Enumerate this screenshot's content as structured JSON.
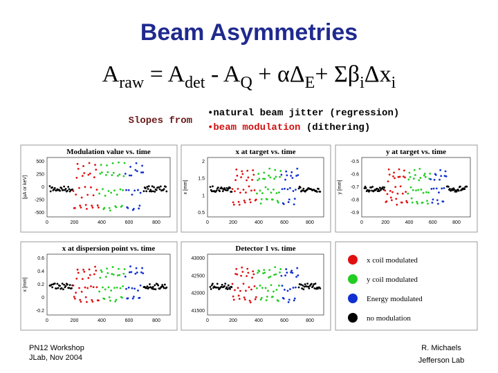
{
  "title": "Beam Asymmetries",
  "equation": [
    {
      "text": "A",
      "sub": false
    },
    {
      "text": "raw",
      "sub": true
    },
    {
      "text": " = A",
      "sub": false
    },
    {
      "text": "det",
      "sub": true
    },
    {
      "text": " - A",
      "sub": false
    },
    {
      "text": "Q",
      "sub": true
    },
    {
      "text": " + αΔ",
      "sub": false
    },
    {
      "text": "E",
      "sub": true
    },
    {
      "text": "+ Σβ",
      "sub": false
    },
    {
      "text": "i",
      "sub": true
    },
    {
      "text": "Δx",
      "sub": false
    },
    {
      "text": "i",
      "sub": true
    }
  ],
  "slopes": {
    "label": "Slopes from",
    "line1": "•natural beam jitter (regression)",
    "line2_highlight": "•beam modulation",
    "line2_rest": " (dithering)"
  },
  "panels": [
    {
      "title": "Modulation value vs. time",
      "ylabel": "[µA or keV]",
      "yticks": [
        "500",
        "250",
        "0",
        "-250",
        "-500"
      ],
      "xticks": [
        "0",
        "200",
        "400",
        "600",
        "800"
      ]
    },
    {
      "title": "x at target vs. time",
      "ylabel": "x [mm]",
      "yticks": [
        "2",
        "1.5",
        "1",
        "0.5"
      ],
      "xticks": [
        "0",
        "200",
        "400",
        "600",
        "800"
      ]
    },
    {
      "title": "y at target vs. time",
      "ylabel": "y [mm]",
      "yticks": [
        "-0.5",
        "-0.6",
        "-0.7",
        "-0.8",
        "-0.9"
      ],
      "xticks": [
        "0",
        "200",
        "400",
        "600",
        "800"
      ]
    },
    {
      "title": "x at dispersion point vs. time",
      "ylabel": "x [mm]",
      "yticks": [
        "0.6",
        "0.4",
        "0.2",
        "0",
        "-0.2"
      ],
      "xticks": [
        "0",
        "200",
        "400",
        "600",
        "800"
      ]
    },
    {
      "title": "Detector 1 vs. time",
      "ylabel": "",
      "yticks": [
        "43000",
        "42500",
        "42000",
        "41500"
      ],
      "xticks": [
        "0",
        "200",
        "400",
        "600",
        "800"
      ]
    }
  ],
  "legend": [
    {
      "label": "x coil modulated",
      "color": "#e01010"
    },
    {
      "label": "y coil modulated",
      "color": "#22cc22"
    },
    {
      "label": "Energy modulated",
      "color": "#1030d0"
    },
    {
      "label": "no modulation",
      "color": "#000000"
    }
  ],
  "footer_left": [
    "PN12 Workshop",
    "JLab, Nov 2004"
  ],
  "footer_right": [
    "R. Michaels",
    "Jefferson Lab"
  ]
}
